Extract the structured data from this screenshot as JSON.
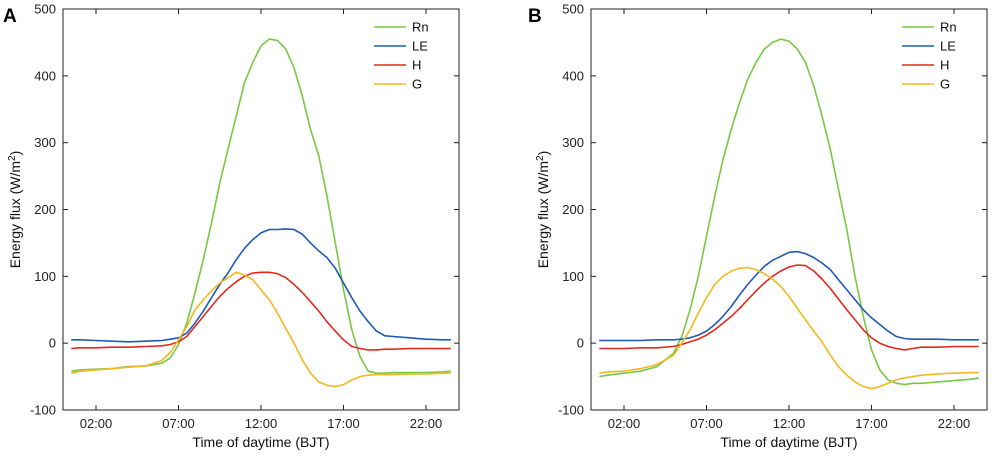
{
  "chart_data": [
    {
      "panel": "A",
      "type": "line",
      "xlabel": "Time of daytime (BJT)",
      "ylabel": "Energy flux (W/m",
      "ylabel_sup": "2",
      "ylabel_close": ")",
      "xlim": [
        0,
        24
      ],
      "ylim": [
        -100,
        500
      ],
      "xticks": [
        2,
        7,
        12,
        17,
        22
      ],
      "xtick_labels": [
        "02:00",
        "07:00",
        "12:00",
        "17:00",
        "22:00"
      ],
      "yticks": [
        -100,
        0,
        100,
        200,
        300,
        400,
        500
      ],
      "ytick_labels": [
        "-100",
        "0",
        "100",
        "200",
        "300",
        "400",
        "500"
      ],
      "legend_position": "top-right",
      "series": [
        {
          "name": "Rn",
          "color": "#77c843",
          "x": [
            0.5,
            1,
            2,
            3,
            4,
            5,
            6,
            6.5,
            7,
            7.5,
            8,
            8.5,
            9,
            9.5,
            10,
            10.5,
            11,
            11.5,
            12,
            12.5,
            13,
            13.5,
            14,
            14.5,
            15,
            15.5,
            16,
            16.5,
            17,
            17.5,
            18,
            18.5,
            19,
            19.5,
            20,
            21,
            22,
            23,
            23.5
          ],
          "y": [
            -42,
            -40,
            -39,
            -38,
            -35,
            -34,
            -30,
            -22,
            -2,
            30,
            75,
            125,
            180,
            240,
            290,
            340,
            390,
            420,
            445,
            455,
            453,
            440,
            412,
            370,
            320,
            280,
            220,
            150,
            80,
            20,
            -20,
            -42,
            -45,
            -45,
            -44,
            -44,
            -44,
            -43,
            -42
          ]
        },
        {
          "name": "LE",
          "color": "#1f5ab5",
          "x": [
            0.5,
            1,
            2,
            3,
            4,
            5,
            6,
            6.5,
            7,
            7.5,
            8,
            8.5,
            9,
            9.5,
            10,
            10.5,
            11,
            11.5,
            12,
            12.5,
            13,
            13.5,
            14,
            14.5,
            15,
            15.5,
            16,
            16.5,
            17,
            17.5,
            18,
            18.5,
            19,
            19.5,
            20,
            21,
            22,
            23,
            23.5
          ],
          "y": [
            5,
            5,
            4,
            3,
            2,
            3,
            4,
            6,
            8,
            15,
            30,
            48,
            68,
            88,
            105,
            125,
            142,
            155,
            165,
            170,
            170,
            171,
            170,
            163,
            150,
            138,
            128,
            112,
            90,
            68,
            48,
            32,
            18,
            11,
            10,
            8,
            6,
            5,
            5
          ]
        },
        {
          "name": "H",
          "color": "#e42820",
          "x": [
            0.5,
            1,
            2,
            3,
            4,
            5,
            6,
            6.5,
            7,
            7.5,
            8,
            8.5,
            9,
            9.5,
            10,
            10.5,
            11,
            11.5,
            12,
            12.5,
            13,
            13.5,
            14,
            14.5,
            15,
            15.5,
            16,
            16.5,
            17,
            17.5,
            18,
            18.5,
            19,
            19.5,
            20,
            21,
            22,
            23,
            23.5
          ],
          "y": [
            -8,
            -7,
            -7,
            -6,
            -6,
            -5,
            -4,
            -2,
            2,
            10,
            25,
            40,
            55,
            70,
            82,
            92,
            100,
            105,
            106,
            106,
            104,
            98,
            88,
            76,
            62,
            48,
            32,
            18,
            5,
            -5,
            -8,
            -10,
            -10,
            -9,
            -9,
            -8,
            -8,
            -8,
            -8
          ]
        },
        {
          "name": "G",
          "color": "#f4b81d",
          "x": [
            0.5,
            1,
            2,
            3,
            4,
            5,
            6,
            6.5,
            7,
            7.5,
            8,
            8.5,
            9,
            9.5,
            10,
            10.5,
            11,
            11.5,
            12,
            12.5,
            13,
            13.5,
            14,
            14.5,
            15,
            15.5,
            16,
            16.5,
            17,
            17.5,
            18,
            18.5,
            19,
            19.5,
            20,
            21,
            22,
            23,
            23.5
          ],
          "y": [
            -45,
            -42,
            -40,
            -38,
            -36,
            -34,
            -26,
            -14,
            5,
            25,
            50,
            65,
            78,
            90,
            98,
            106,
            102,
            95,
            80,
            65,
            45,
            22,
            0,
            -25,
            -45,
            -58,
            -63,
            -65,
            -62,
            -55,
            -50,
            -48,
            -47,
            -47,
            -47,
            -46,
            -46,
            -45,
            -45
          ]
        }
      ]
    },
    {
      "panel": "B",
      "type": "line",
      "xlabel": "Time of daytime (BJT)",
      "ylabel": "Energy flux (W/m",
      "ylabel_sup": "2",
      "ylabel_close": ")",
      "xlim": [
        0,
        24
      ],
      "ylim": [
        -100,
        500
      ],
      "xticks": [
        2,
        7,
        12,
        17,
        22
      ],
      "xtick_labels": [
        "02:00",
        "07:00",
        "12:00",
        "17:00",
        "22:00"
      ],
      "yticks": [
        -100,
        0,
        100,
        200,
        300,
        400,
        500
      ],
      "ytick_labels": [
        "-100",
        "0",
        "100",
        "200",
        "300",
        "400",
        "500"
      ],
      "legend_position": "top-right",
      "series": [
        {
          "name": "Rn",
          "color": "#77c843",
          "x": [
            0.5,
            1,
            2,
            3,
            4,
            5,
            5.5,
            6,
            6.5,
            7,
            7.5,
            8,
            8.5,
            9,
            9.5,
            10,
            10.5,
            11,
            11.5,
            12,
            12.5,
            13,
            13.5,
            14,
            14.5,
            15,
            15.5,
            16,
            16.5,
            17,
            17.5,
            18,
            18.5,
            19,
            19.5,
            20,
            21,
            22,
            23,
            23.5
          ],
          "y": [
            -50,
            -48,
            -45,
            -42,
            -35,
            -15,
            10,
            50,
            100,
            160,
            220,
            275,
            320,
            360,
            395,
            420,
            440,
            450,
            455,
            452,
            440,
            420,
            385,
            340,
            290,
            230,
            170,
            100,
            40,
            -10,
            -40,
            -55,
            -60,
            -62,
            -60,
            -60,
            -58,
            -56,
            -54,
            -52
          ]
        },
        {
          "name": "LE",
          "color": "#1f5ab5",
          "x": [
            0.5,
            1,
            2,
            3,
            4,
            5,
            5.5,
            6,
            6.5,
            7,
            7.5,
            8,
            8.5,
            9,
            9.5,
            10,
            10.5,
            11,
            11.5,
            12,
            12.5,
            13,
            13.5,
            14,
            14.5,
            15,
            15.5,
            16,
            16.5,
            17,
            17.5,
            18,
            18.5,
            19,
            19.5,
            20,
            21,
            22,
            23,
            23.5
          ],
          "y": [
            4,
            4,
            4,
            4,
            5,
            5,
            6,
            8,
            12,
            18,
            28,
            40,
            55,
            72,
            88,
            102,
            115,
            124,
            130,
            136,
            137,
            134,
            128,
            120,
            110,
            95,
            80,
            65,
            50,
            38,
            28,
            18,
            10,
            7,
            6,
            6,
            6,
            5,
            5,
            5
          ]
        },
        {
          "name": "H",
          "color": "#e42820",
          "x": [
            0.5,
            1,
            2,
            3,
            4,
            5,
            5.5,
            6,
            6.5,
            7,
            7.5,
            8,
            8.5,
            9,
            9.5,
            10,
            10.5,
            11,
            11.5,
            12,
            12.5,
            13,
            13.5,
            14,
            14.5,
            15,
            15.5,
            16,
            16.5,
            17,
            17.5,
            18,
            18.5,
            19,
            19.5,
            20,
            21,
            22,
            23,
            23.5
          ],
          "y": [
            -8,
            -8,
            -8,
            -7,
            -7,
            -5,
            -2,
            2,
            6,
            12,
            20,
            30,
            40,
            52,
            65,
            78,
            90,
            100,
            108,
            114,
            117,
            116,
            108,
            96,
            82,
            66,
            50,
            35,
            20,
            8,
            0,
            -5,
            -8,
            -10,
            -8,
            -6,
            -6,
            -5,
            -5,
            -5
          ]
        },
        {
          "name": "G",
          "color": "#f4b81d",
          "x": [
            0.5,
            1,
            2,
            3,
            4,
            5,
            5.5,
            6,
            6.5,
            7,
            7.5,
            8,
            8.5,
            9,
            9.5,
            10,
            10.5,
            11,
            11.5,
            12,
            12.5,
            13,
            13.5,
            14,
            14.5,
            15,
            15.5,
            16,
            16.5,
            17,
            17.5,
            18,
            18.5,
            19,
            19.5,
            20,
            21,
            22,
            23,
            23.5
          ],
          "y": [
            -45,
            -43,
            -42,
            -38,
            -32,
            -18,
            0,
            20,
            45,
            68,
            88,
            100,
            108,
            112,
            113,
            110,
            104,
            96,
            85,
            70,
            52,
            35,
            18,
            2,
            -18,
            -35,
            -48,
            -58,
            -65,
            -68,
            -65,
            -60,
            -55,
            -52,
            -50,
            -48,
            -46,
            -45,
            -44,
            -44
          ]
        }
      ]
    }
  ]
}
